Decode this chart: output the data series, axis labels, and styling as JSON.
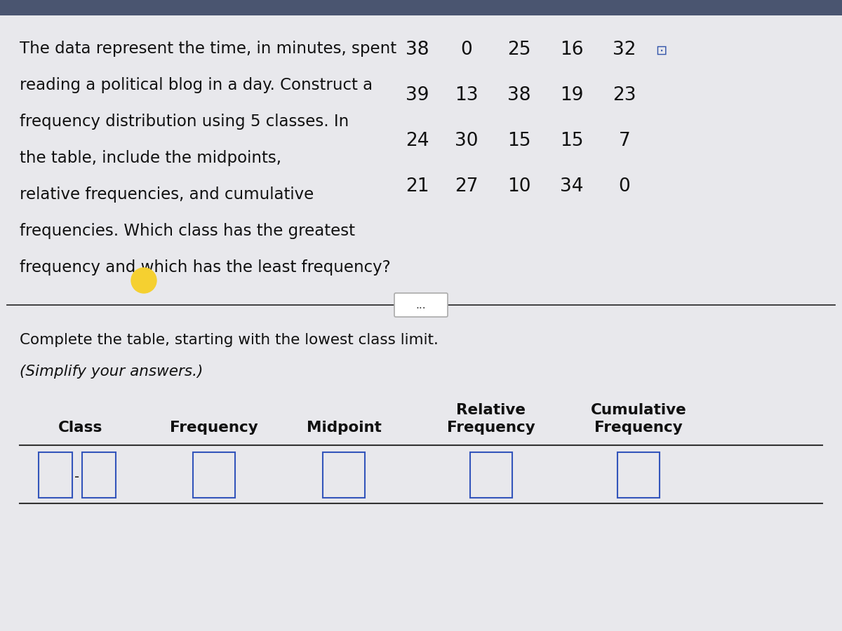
{
  "bg_color": "#e2e2e6",
  "top_strip_color": "#4a5570",
  "content_bg": "#e8e8ec",
  "problem_text_lines": [
    "The data represent the time, in minutes, spent",
    "reading a political blog in a day. Construct a",
    "frequency distribution using 5 classes. In",
    "the table, include the midpoints,",
    "relative frequencies, and cumulative",
    "frequencies. Which class has the greatest",
    "frequency and which has the least frequency?"
  ],
  "data_grid": [
    [
      "38",
      "0",
      "25",
      "16",
      "32"
    ],
    [
      "39",
      "13",
      "38",
      "19",
      "23"
    ],
    [
      "24",
      "30",
      "15",
      "15",
      "7"
    ],
    [
      "21",
      "27",
      "10",
      "34",
      "0"
    ]
  ],
  "bottom_text_line1": "Complete the table, starting with the lowest class limit.",
  "bottom_text_line2": "(Simplify your answers.)",
  "col_headers_line1": [
    "",
    "",
    "",
    "Relative",
    "Cumulative"
  ],
  "col_headers_line2": [
    "Class",
    "Frequency",
    "Midpoint",
    "Frequency",
    "Frequency"
  ],
  "separator_text": "...",
  "yellow_color": "#f5d030",
  "text_color": "#111111",
  "box_border_color": "#3355bb",
  "line_color": "#333333",
  "font_size_problem": 16.5,
  "font_size_data": 19,
  "font_size_bottom": 15.5,
  "font_size_headers": 15.5,
  "font_size_boxes": 14
}
